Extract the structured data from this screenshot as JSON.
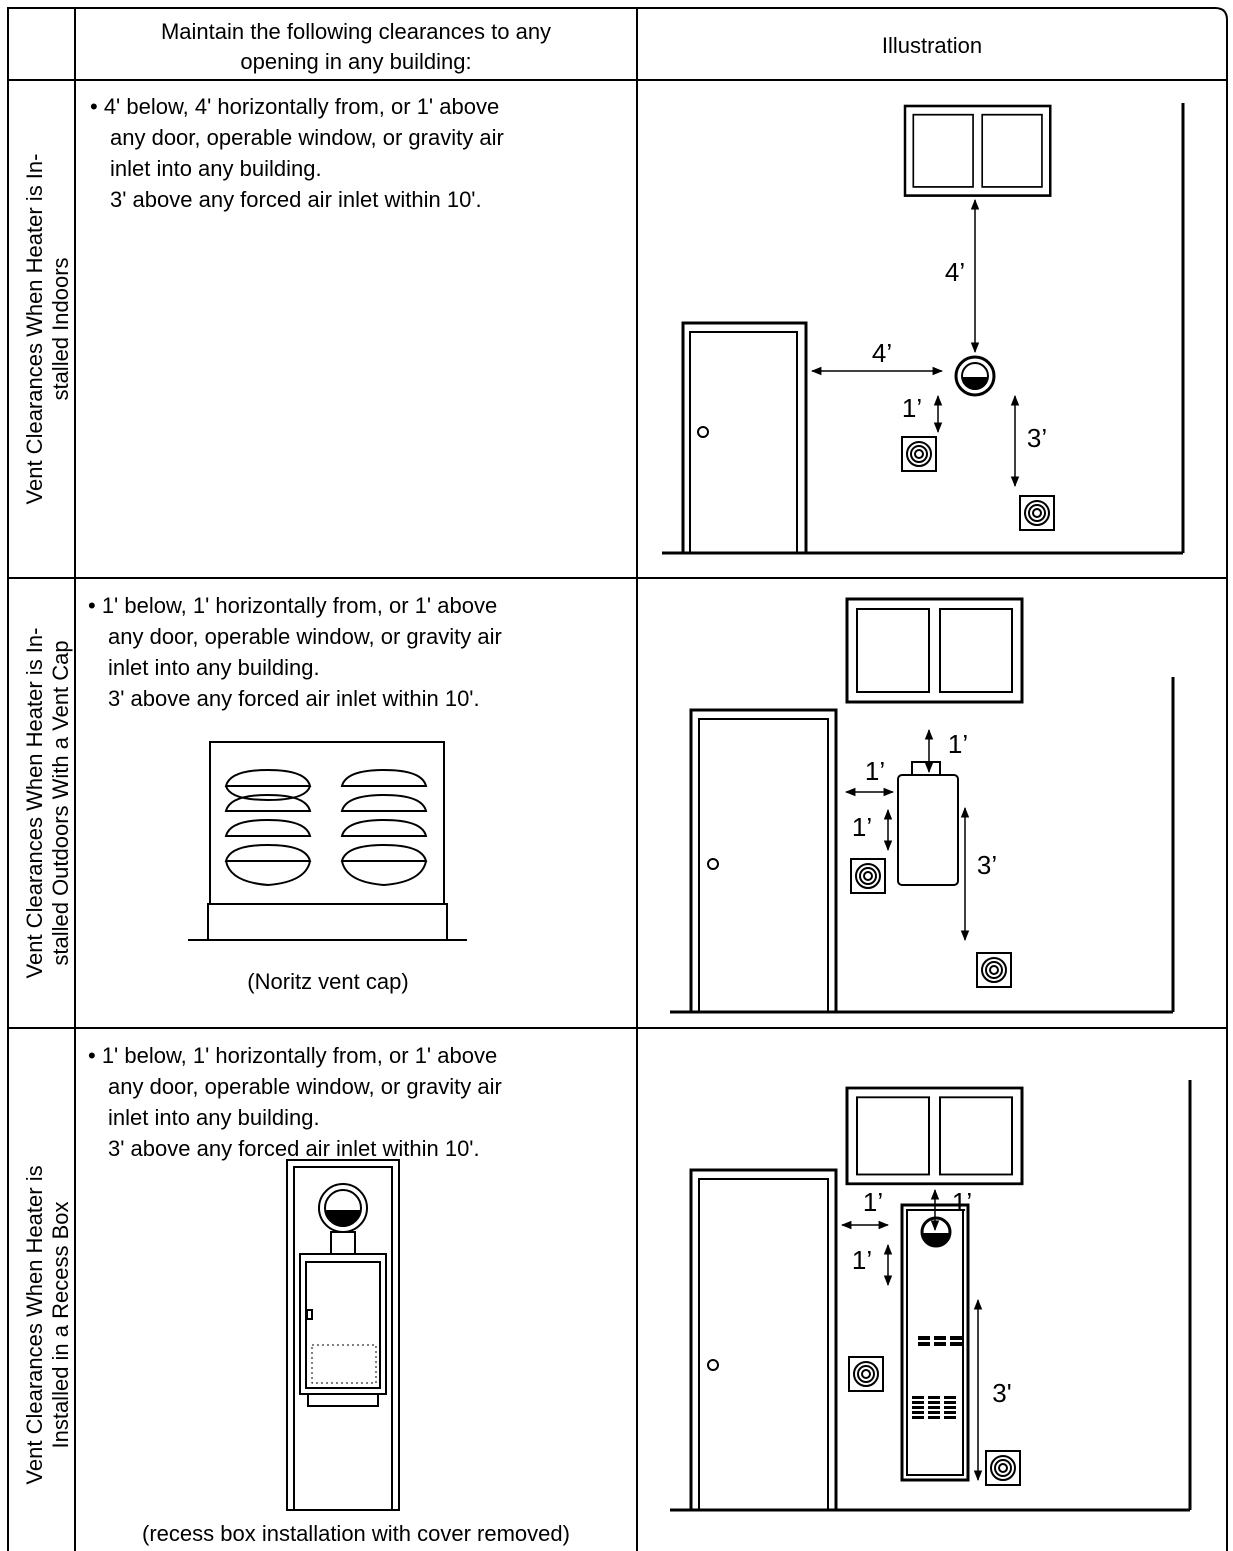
{
  "header": {
    "requirements": [
      "Maintain the following clearances to any",
      "opening in any building:"
    ],
    "illustration": "Illustration"
  },
  "rows": [
    {
      "label": [
        "Vent Clearances When Heater is In-",
        "stalled Indoors"
      ],
      "text": [
        "• 4' below, 4' horizontally from, or 1' above",
        "any door, operable window, or gravity air",
        "inlet into any building.",
        "3' above any forced air inlet within 10'."
      ],
      "dimensions": [
        "4’",
        "4’",
        "1’",
        "3’"
      ]
    },
    {
      "label": [
        "Vent Clearances When Heater is In-",
        "stalled Outdoors With a Vent Cap"
      ],
      "text": [
        "• 1' below, 1' horizontally from, or 1' above",
        "any door, operable window, or gravity air",
        "inlet into any building.",
        "3' above any forced air inlet within 10'."
      ],
      "caption": "(Noritz vent cap)",
      "dimensions": [
        "1’",
        "1’",
        "1’",
        "3’"
      ]
    },
    {
      "label": [
        "Vent Clearances When Heater is",
        "Installed in a Recess Box"
      ],
      "text": [
        "• 1' below, 1' horizontally from, or 1' above",
        "any door, operable window, or gravity air",
        "inlet into any building.",
        "3' above any forced air inlet within 10'."
      ],
      "caption": "(recess box installation with cover removed)",
      "dimensions": [
        "1’",
        "1’",
        "1’",
        "3'"
      ]
    }
  ]
}
